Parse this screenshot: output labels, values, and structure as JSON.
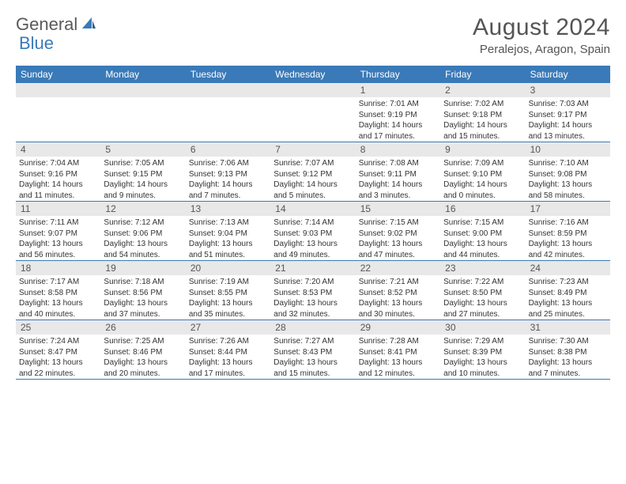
{
  "logo": {
    "part1": "General",
    "part2": "Blue"
  },
  "title": "August 2024",
  "location": "Peralejos, Aragon, Spain",
  "colors": {
    "header_bg": "#3a7ab8",
    "header_text": "#ffffff",
    "date_row_bg": "#e8e8e8",
    "border": "#3a7ab8",
    "body_text": "#333333",
    "title_text": "#555555"
  },
  "day_names": [
    "Sunday",
    "Monday",
    "Tuesday",
    "Wednesday",
    "Thursday",
    "Friday",
    "Saturday"
  ],
  "weeks": [
    {
      "dates": [
        "",
        "",
        "",
        "",
        "1",
        "2",
        "3"
      ],
      "cells": [
        null,
        null,
        null,
        null,
        {
          "sunrise": "Sunrise: 7:01 AM",
          "sunset": "Sunset: 9:19 PM",
          "daylight": "Daylight: 14 hours and 17 minutes."
        },
        {
          "sunrise": "Sunrise: 7:02 AM",
          "sunset": "Sunset: 9:18 PM",
          "daylight": "Daylight: 14 hours and 15 minutes."
        },
        {
          "sunrise": "Sunrise: 7:03 AM",
          "sunset": "Sunset: 9:17 PM",
          "daylight": "Daylight: 14 hours and 13 minutes."
        }
      ]
    },
    {
      "dates": [
        "4",
        "5",
        "6",
        "7",
        "8",
        "9",
        "10"
      ],
      "cells": [
        {
          "sunrise": "Sunrise: 7:04 AM",
          "sunset": "Sunset: 9:16 PM",
          "daylight": "Daylight: 14 hours and 11 minutes."
        },
        {
          "sunrise": "Sunrise: 7:05 AM",
          "sunset": "Sunset: 9:15 PM",
          "daylight": "Daylight: 14 hours and 9 minutes."
        },
        {
          "sunrise": "Sunrise: 7:06 AM",
          "sunset": "Sunset: 9:13 PM",
          "daylight": "Daylight: 14 hours and 7 minutes."
        },
        {
          "sunrise": "Sunrise: 7:07 AM",
          "sunset": "Sunset: 9:12 PM",
          "daylight": "Daylight: 14 hours and 5 minutes."
        },
        {
          "sunrise": "Sunrise: 7:08 AM",
          "sunset": "Sunset: 9:11 PM",
          "daylight": "Daylight: 14 hours and 3 minutes."
        },
        {
          "sunrise": "Sunrise: 7:09 AM",
          "sunset": "Sunset: 9:10 PM",
          "daylight": "Daylight: 14 hours and 0 minutes."
        },
        {
          "sunrise": "Sunrise: 7:10 AM",
          "sunset": "Sunset: 9:08 PM",
          "daylight": "Daylight: 13 hours and 58 minutes."
        }
      ]
    },
    {
      "dates": [
        "11",
        "12",
        "13",
        "14",
        "15",
        "16",
        "17"
      ],
      "cells": [
        {
          "sunrise": "Sunrise: 7:11 AM",
          "sunset": "Sunset: 9:07 PM",
          "daylight": "Daylight: 13 hours and 56 minutes."
        },
        {
          "sunrise": "Sunrise: 7:12 AM",
          "sunset": "Sunset: 9:06 PM",
          "daylight": "Daylight: 13 hours and 54 minutes."
        },
        {
          "sunrise": "Sunrise: 7:13 AM",
          "sunset": "Sunset: 9:04 PM",
          "daylight": "Daylight: 13 hours and 51 minutes."
        },
        {
          "sunrise": "Sunrise: 7:14 AM",
          "sunset": "Sunset: 9:03 PM",
          "daylight": "Daylight: 13 hours and 49 minutes."
        },
        {
          "sunrise": "Sunrise: 7:15 AM",
          "sunset": "Sunset: 9:02 PM",
          "daylight": "Daylight: 13 hours and 47 minutes."
        },
        {
          "sunrise": "Sunrise: 7:15 AM",
          "sunset": "Sunset: 9:00 PM",
          "daylight": "Daylight: 13 hours and 44 minutes."
        },
        {
          "sunrise": "Sunrise: 7:16 AM",
          "sunset": "Sunset: 8:59 PM",
          "daylight": "Daylight: 13 hours and 42 minutes."
        }
      ]
    },
    {
      "dates": [
        "18",
        "19",
        "20",
        "21",
        "22",
        "23",
        "24"
      ],
      "cells": [
        {
          "sunrise": "Sunrise: 7:17 AM",
          "sunset": "Sunset: 8:58 PM",
          "daylight": "Daylight: 13 hours and 40 minutes."
        },
        {
          "sunrise": "Sunrise: 7:18 AM",
          "sunset": "Sunset: 8:56 PM",
          "daylight": "Daylight: 13 hours and 37 minutes."
        },
        {
          "sunrise": "Sunrise: 7:19 AM",
          "sunset": "Sunset: 8:55 PM",
          "daylight": "Daylight: 13 hours and 35 minutes."
        },
        {
          "sunrise": "Sunrise: 7:20 AM",
          "sunset": "Sunset: 8:53 PM",
          "daylight": "Daylight: 13 hours and 32 minutes."
        },
        {
          "sunrise": "Sunrise: 7:21 AM",
          "sunset": "Sunset: 8:52 PM",
          "daylight": "Daylight: 13 hours and 30 minutes."
        },
        {
          "sunrise": "Sunrise: 7:22 AM",
          "sunset": "Sunset: 8:50 PM",
          "daylight": "Daylight: 13 hours and 27 minutes."
        },
        {
          "sunrise": "Sunrise: 7:23 AM",
          "sunset": "Sunset: 8:49 PM",
          "daylight": "Daylight: 13 hours and 25 minutes."
        }
      ]
    },
    {
      "dates": [
        "25",
        "26",
        "27",
        "28",
        "29",
        "30",
        "31"
      ],
      "cells": [
        {
          "sunrise": "Sunrise: 7:24 AM",
          "sunset": "Sunset: 8:47 PM",
          "daylight": "Daylight: 13 hours and 22 minutes."
        },
        {
          "sunrise": "Sunrise: 7:25 AM",
          "sunset": "Sunset: 8:46 PM",
          "daylight": "Daylight: 13 hours and 20 minutes."
        },
        {
          "sunrise": "Sunrise: 7:26 AM",
          "sunset": "Sunset: 8:44 PM",
          "daylight": "Daylight: 13 hours and 17 minutes."
        },
        {
          "sunrise": "Sunrise: 7:27 AM",
          "sunset": "Sunset: 8:43 PM",
          "daylight": "Daylight: 13 hours and 15 minutes."
        },
        {
          "sunrise": "Sunrise: 7:28 AM",
          "sunset": "Sunset: 8:41 PM",
          "daylight": "Daylight: 13 hours and 12 minutes."
        },
        {
          "sunrise": "Sunrise: 7:29 AM",
          "sunset": "Sunset: 8:39 PM",
          "daylight": "Daylight: 13 hours and 10 minutes."
        },
        {
          "sunrise": "Sunrise: 7:30 AM",
          "sunset": "Sunset: 8:38 PM",
          "daylight": "Daylight: 13 hours and 7 minutes."
        }
      ]
    }
  ]
}
